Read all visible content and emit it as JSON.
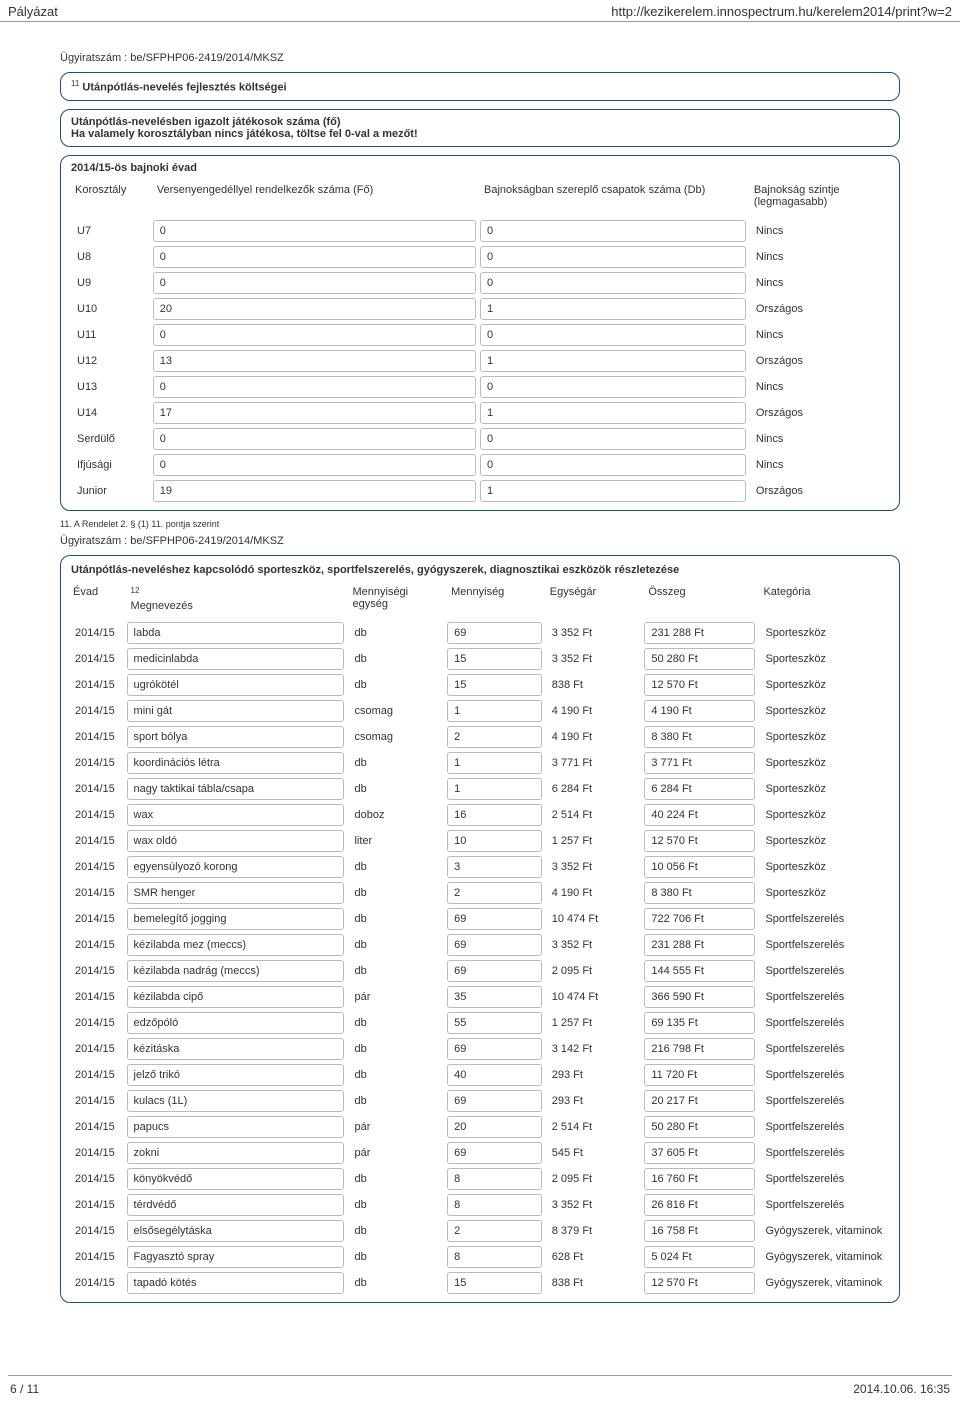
{
  "header": {
    "left": "Pályázat",
    "right": "http://kezikerelem.innospectrum.hu/kerelem2014/print?w=2"
  },
  "caseNumber": "Ügyiratszám : be/SFPHP06-2419/2014/MKSZ",
  "sectionTitle": "Utánpótlás-nevelés fejlesztés költségei",
  "sectionSup": "11",
  "subBox": {
    "line1": "Utánpótlás-nevelésben igazolt játékosok száma (fő)",
    "line2": "Ha valamely korosztályban nincs játékosa, töltse fel 0-val a mezőt!"
  },
  "seasonTitle": "2014/15-ös bajnoki évad",
  "table1": {
    "headers": [
      "Korosztály",
      "Versenyengedéllyel rendelkezők száma (Fő)",
      "Bajnokságban szereplő csapatok száma (Db)",
      "Bajnokság szintje (legmagasabb)"
    ],
    "rows": [
      {
        "k": "U7",
        "v": "0",
        "b": "0",
        "s": "Nincs"
      },
      {
        "k": "U8",
        "v": "0",
        "b": "0",
        "s": "Nincs"
      },
      {
        "k": "U9",
        "v": "0",
        "b": "0",
        "s": "Nincs"
      },
      {
        "k": "U10",
        "v": "20",
        "b": "1",
        "s": "Országos"
      },
      {
        "k": "U11",
        "v": "0",
        "b": "0",
        "s": "Nincs"
      },
      {
        "k": "U12",
        "v": "13",
        "b": "1",
        "s": "Országos"
      },
      {
        "k": "U13",
        "v": "0",
        "b": "0",
        "s": "Nincs"
      },
      {
        "k": "U14",
        "v": "17",
        "b": "1",
        "s": "Országos"
      },
      {
        "k": "Serdülő",
        "v": "0",
        "b": "0",
        "s": "Nincs"
      },
      {
        "k": "Ifjúsági",
        "v": "0",
        "b": "0",
        "s": "Nincs"
      },
      {
        "k": "Junior",
        "v": "19",
        "b": "1",
        "s": "Országos"
      }
    ]
  },
  "footnote": "11. A Rendelet 2. § (1) 11. pontja szerint",
  "caseNumber2": "Ügyiratszám : be/SFPHP06-2419/2014/MKSZ",
  "detailsTitle": "Utánpótlás-neveléshez kapcsolódó sporteszköz, sportfelszerelés, gyógyszerek, diagnosztikai eszközök részletezése",
  "table2": {
    "headers": [
      "Évad",
      "Megnevezés",
      "Mennyiségi egység",
      "Mennyiség",
      "Egységár",
      "Összeg",
      "Kategória"
    ],
    "sup12": "12",
    "rows": [
      {
        "e": "2014/15",
        "m": "labda",
        "me": "db",
        "q": "69",
        "u": "3 352 Ft",
        "o": "231 288  Ft",
        "k": "Sporteszköz"
      },
      {
        "e": "2014/15",
        "m": "medicinlabda",
        "me": "db",
        "q": "15",
        "u": "3 352 Ft",
        "o": "50 280  Ft",
        "k": "Sporteszköz"
      },
      {
        "e": "2014/15",
        "m": "ugrókötél",
        "me": "db",
        "q": "15",
        "u": "838 Ft",
        "o": "12 570  Ft",
        "k": "Sporteszköz"
      },
      {
        "e": "2014/15",
        "m": "mini gát",
        "me": "csomag",
        "q": "1",
        "u": "4 190 Ft",
        "o": "4 190  Ft",
        "k": "Sporteszköz"
      },
      {
        "e": "2014/15",
        "m": "sport bólya",
        "me": "csomag",
        "q": "2",
        "u": "4 190 Ft",
        "o": "8 380  Ft",
        "k": "Sporteszköz"
      },
      {
        "e": "2014/15",
        "m": "koordinációs létra",
        "me": "db",
        "q": "1",
        "u": "3 771 Ft",
        "o": "3 771  Ft",
        "k": "Sporteszköz"
      },
      {
        "e": "2014/15",
        "m": "nagy taktikai tábla/csapa",
        "me": "db",
        "q": "1",
        "u": "6 284 Ft",
        "o": "6 284  Ft",
        "k": "Sporteszköz"
      },
      {
        "e": "2014/15",
        "m": "wax",
        "me": "doboz",
        "q": "16",
        "u": "2 514 Ft",
        "o": "40 224  Ft",
        "k": "Sporteszköz"
      },
      {
        "e": "2014/15",
        "m": "wax oldó",
        "me": "liter",
        "q": "10",
        "u": "1 257 Ft",
        "o": "12 570  Ft",
        "k": "Sporteszköz"
      },
      {
        "e": "2014/15",
        "m": "egyensúlyozó korong",
        "me": "db",
        "q": "3",
        "u": "3 352 Ft",
        "o": "10 056  Ft",
        "k": "Sporteszköz"
      },
      {
        "e": "2014/15",
        "m": "SMR henger",
        "me": "db",
        "q": "2",
        "u": "4 190 Ft",
        "o": "8 380  Ft",
        "k": "Sporteszköz"
      },
      {
        "e": "2014/15",
        "m": "bemelegítő jogging",
        "me": "db",
        "q": "69",
        "u": "10 474 Ft",
        "o": "722 706  Ft",
        "k": "Sportfelszerelés"
      },
      {
        "e": "2014/15",
        "m": "kézilabda mez (meccs)",
        "me": "db",
        "q": "69",
        "u": "3 352 Ft",
        "o": "231 288  Ft",
        "k": "Sportfelszerelés"
      },
      {
        "e": "2014/15",
        "m": "kézilabda nadrág (meccs)",
        "me": "db",
        "q": "69",
        "u": "2 095 Ft",
        "o": "144 555  Ft",
        "k": "Sportfelszerelés"
      },
      {
        "e": "2014/15",
        "m": "kézilabda cipő",
        "me": "pár",
        "q": "35",
        "u": "10 474 Ft",
        "o": "366 590  Ft",
        "k": "Sportfelszerelés"
      },
      {
        "e": "2014/15",
        "m": "edzőpóló",
        "me": "db",
        "q": "55",
        "u": "1 257 Ft",
        "o": "69 135  Ft",
        "k": "Sportfelszerelés"
      },
      {
        "e": "2014/15",
        "m": "kézitáska",
        "me": "db",
        "q": "69",
        "u": "3 142 Ft",
        "o": "216 798  Ft",
        "k": "Sportfelszerelés"
      },
      {
        "e": "2014/15",
        "m": "jelző trikó",
        "me": "db",
        "q": "40",
        "u": "293 Ft",
        "o": "11 720  Ft",
        "k": "Sportfelszerelés"
      },
      {
        "e": "2014/15",
        "m": "kulacs (1L)",
        "me": "db",
        "q": "69",
        "u": "293 Ft",
        "o": "20 217  Ft",
        "k": "Sportfelszerelés"
      },
      {
        "e": "2014/15",
        "m": "papucs",
        "me": "pár",
        "q": "20",
        "u": "2 514 Ft",
        "o": "50 280  Ft",
        "k": "Sportfelszerelés"
      },
      {
        "e": "2014/15",
        "m": "zokni",
        "me": "pár",
        "q": "69",
        "u": "545 Ft",
        "o": "37 605  Ft",
        "k": "Sportfelszerelés"
      },
      {
        "e": "2014/15",
        "m": "könyökvédő",
        "me": "db",
        "q": "8",
        "u": "2 095 Ft",
        "o": "16 760  Ft",
        "k": "Sportfelszerelés"
      },
      {
        "e": "2014/15",
        "m": "térdvédő",
        "me": "db",
        "q": "8",
        "u": "3 352 Ft",
        "o": "26 816  Ft",
        "k": "Sportfelszerelés"
      },
      {
        "e": "2014/15",
        "m": "elsősegélytáska",
        "me": "db",
        "q": "2",
        "u": "8 379 Ft",
        "o": "16 758  Ft",
        "k": "Gyógyszerek, vitaminok"
      },
      {
        "e": "2014/15",
        "m": "Fagyasztó spray",
        "me": "db",
        "q": "8",
        "u": "628 Ft",
        "o": "5 024  Ft",
        "k": "Gyógyszerek, vitaminok"
      },
      {
        "e": "2014/15",
        "m": "tapadó kötés",
        "me": "db",
        "q": "15",
        "u": "838 Ft",
        "o": "12 570  Ft",
        "k": "Gyógyszerek, vitaminok"
      }
    ]
  },
  "footer": {
    "left": "6 / 11",
    "right": "2014.10.06. 16:35"
  }
}
